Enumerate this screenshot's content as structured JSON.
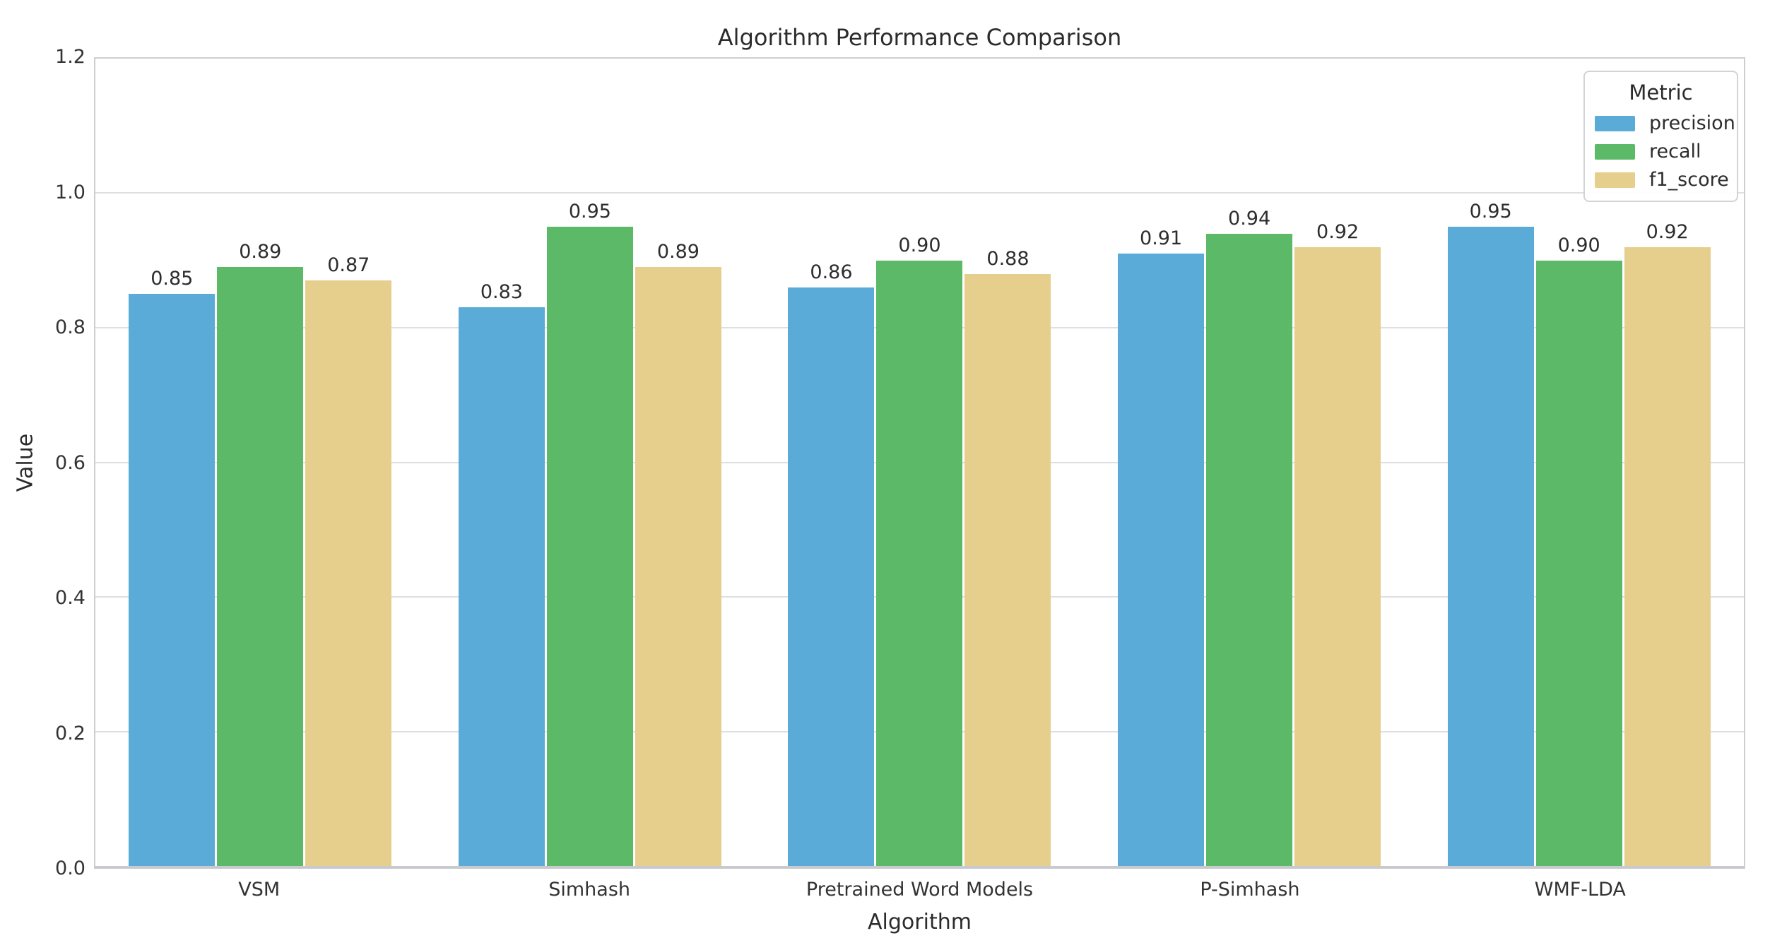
{
  "chart_data": {
    "type": "bar",
    "title": "Algorithm Performance Comparison",
    "xlabel": "Algorithm",
    "ylabel": "Value",
    "ylim": [
      0,
      1.2
    ],
    "yticks": [
      0.0,
      0.2,
      0.4,
      0.6,
      0.8,
      1.0,
      1.2
    ],
    "grid": "horizontal",
    "categories": [
      "VSM",
      "Simhash",
      "Pretrained Word Models",
      "P-Simhash",
      "WMF-LDA"
    ],
    "series": [
      {
        "name": "precision",
        "color": "#5aabd8",
        "values": [
          0.85,
          0.83,
          0.86,
          0.91,
          0.95
        ]
      },
      {
        "name": "recall",
        "color": "#5cb968",
        "values": [
          0.89,
          0.95,
          0.9,
          0.94,
          0.9
        ]
      },
      {
        "name": "f1_score",
        "color": "#e6ce8d",
        "values": [
          0.87,
          0.89,
          0.88,
          0.92,
          0.92
        ]
      }
    ],
    "bar_value_labels": [
      "0.85",
      "0.89",
      "0.87",
      "0.83",
      "0.95",
      "0.89",
      "0.86",
      "0.90",
      "0.88",
      "0.91",
      "0.94",
      "0.92",
      "0.95",
      "0.90",
      "0.92"
    ],
    "legend": {
      "title": "Metric",
      "position": "upper right",
      "entries": [
        "precision",
        "recall",
        "f1_score"
      ]
    }
  },
  "style_colors": {
    "gridline": "#dfdfe3",
    "spine": "#cdced1",
    "background": "#ffffff",
    "text": "#2d2d2d"
  }
}
